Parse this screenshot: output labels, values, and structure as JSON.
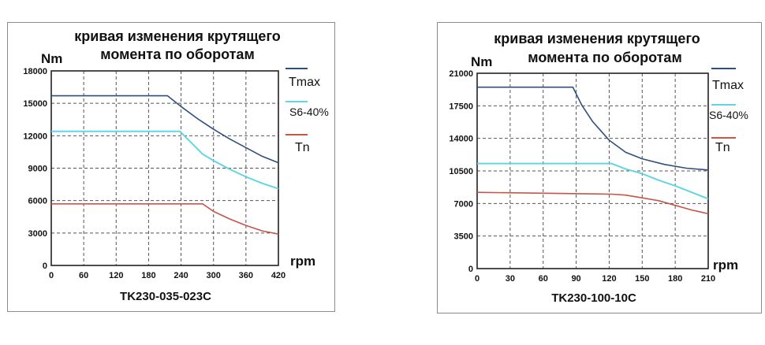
{
  "colors": {
    "tmax": "#2f4f7f",
    "s6": "#62d5e3",
    "tn": "#c4564a",
    "grid": "#555555",
    "frame": "#222222"
  },
  "chart_data": [
    {
      "type": "line",
      "title_line1": "кривая изменения крутящего",
      "title_line2": "момента по оборотам",
      "ylabel": "Nm",
      "xlabel": "rpm",
      "model": "TK230-035-023C",
      "xlim": [
        0,
        420
      ],
      "ylim": [
        0,
        18000
      ],
      "x_ticks": [
        "0",
        "60",
        "120",
        "180",
        "240",
        "300",
        "360",
        "420"
      ],
      "y_ticks": [
        "0",
        "3000",
        "6000",
        "9000",
        "12000",
        "15000",
        "18000"
      ],
      "grid": true,
      "legend_position": "right",
      "series": [
        {
          "name": "Tmax",
          "color_key": "tmax",
          "x": [
            0,
            215,
            240,
            270,
            300,
            330,
            360,
            390,
            420
          ],
          "y": [
            15700,
            15700,
            14700,
            13600,
            12600,
            11700,
            10900,
            10100,
            9500
          ]
        },
        {
          "name": "S6-40%",
          "color_key": "s6",
          "x": [
            0,
            238,
            260,
            280,
            300,
            330,
            360,
            390,
            420
          ],
          "y": [
            12400,
            12400,
            11300,
            10300,
            9700,
            8900,
            8200,
            7600,
            7100
          ]
        },
        {
          "name": "Tn",
          "color_key": "tn",
          "x": [
            0,
            280,
            300,
            330,
            360,
            390,
            420
          ],
          "y": [
            5700,
            5700,
            5000,
            4300,
            3700,
            3200,
            2900
          ]
        }
      ]
    },
    {
      "type": "line",
      "title_line1": "кривая изменения крутящего",
      "title_line2": "момента по оборотам",
      "ylabel": "Nm",
      "xlabel": "rpm",
      "model": "TK230-100-10C",
      "xlim": [
        0,
        210
      ],
      "ylim": [
        0,
        21000
      ],
      "x_ticks": [
        "0",
        "30",
        "60",
        "90",
        "120",
        "150",
        "180",
        "210"
      ],
      "y_ticks": [
        "0",
        "3500",
        "7000",
        "10500",
        "14000",
        "17500",
        "21000"
      ],
      "grid": true,
      "legend_position": "right",
      "series": [
        {
          "name": "Tmax",
          "color_key": "tmax",
          "x": [
            0,
            87,
            95,
            105,
            120,
            135,
            150,
            170,
            190,
            210
          ],
          "y": [
            19500,
            19500,
            17600,
            15800,
            13800,
            12500,
            11800,
            11200,
            10800,
            10600
          ]
        },
        {
          "name": "S6-40%",
          "color_key": "s6",
          "x": [
            0,
            122,
            135,
            150,
            165,
            180,
            195,
            210
          ],
          "y": [
            11300,
            11300,
            10700,
            10200,
            9500,
            8900,
            8200,
            7500
          ]
        },
        {
          "name": "Tn",
          "color_key": "tn",
          "x": [
            0,
            122,
            135,
            150,
            165,
            180,
            195,
            210
          ],
          "y": [
            8200,
            8000,
            7900,
            7600,
            7300,
            6800,
            6300,
            5900
          ]
        }
      ]
    }
  ]
}
